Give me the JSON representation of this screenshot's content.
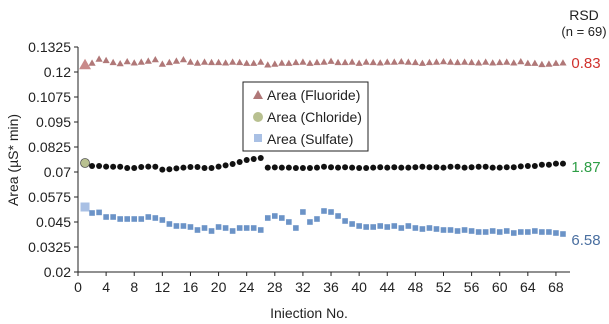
{
  "chart_data": {
    "type": "scatter",
    "xlabel": "Iniection No.",
    "ylabel": "Area (µS* min)",
    "xlim": [
      0,
      70
    ],
    "ylim": [
      0.02,
      0.1325
    ],
    "x_ticks": [
      0,
      4,
      8,
      12,
      16,
      20,
      24,
      28,
      32,
      36,
      40,
      44,
      48,
      52,
      56,
      60,
      64,
      68
    ],
    "y_ticks": [
      0.02,
      0.0325,
      0.045,
      0.0575,
      0.07,
      0.0825,
      0.095,
      0.1075,
      0.12,
      0.1325
    ],
    "y_tick_labels": [
      "0.02",
      "0.0325",
      "0.045",
      "0.0575",
      "0.07",
      "0.0825",
      "0.095",
      "0.1075",
      "0.12",
      "0.1325"
    ],
    "grid": false,
    "legend_position": "center",
    "rsd_header": "RSD",
    "rsd_subheader": "(n = 69)",
    "series": [
      {
        "name": "Area (Fluoride)",
        "marker": "triangle",
        "color": "#b07878",
        "first_color": "#c98a8a",
        "rsd": "0.83",
        "rsd_color": "#d0312d",
        "x": [
          1,
          2,
          3,
          4,
          5,
          6,
          7,
          8,
          9,
          10,
          11,
          12,
          13,
          14,
          15,
          16,
          17,
          18,
          19,
          20,
          21,
          22,
          23,
          24,
          25,
          26,
          27,
          28,
          29,
          30,
          31,
          32,
          33,
          34,
          35,
          36,
          37,
          38,
          39,
          40,
          41,
          42,
          43,
          44,
          45,
          46,
          47,
          48,
          49,
          50,
          51,
          52,
          53,
          54,
          55,
          56,
          57,
          58,
          59,
          60,
          61,
          62,
          63,
          64,
          65,
          66,
          67,
          68,
          69
        ],
        "y": [
          0.1236,
          0.1245,
          0.1265,
          0.1258,
          0.1248,
          0.1242,
          0.1252,
          0.1246,
          0.125,
          0.1255,
          0.1262,
          0.124,
          0.1248,
          0.1255,
          0.1262,
          0.125,
          0.1245,
          0.125,
          0.1248,
          0.1248,
          0.1246,
          0.125,
          0.1248,
          0.1244,
          0.1244,
          0.125,
          0.1236,
          0.124,
          0.1245,
          0.1244,
          0.1248,
          0.125,
          0.1244,
          0.1248,
          0.125,
          0.1254,
          0.1248,
          0.1248,
          0.125,
          0.1244,
          0.125,
          0.1248,
          0.1246,
          0.125,
          0.125,
          0.1252,
          0.125,
          0.1248,
          0.1244,
          0.1248,
          0.125,
          0.1252,
          0.125,
          0.1248,
          0.125,
          0.1248,
          0.1246,
          0.125,
          0.1246,
          0.1248,
          0.125,
          0.1246,
          0.1252,
          0.1244,
          0.1244,
          0.1238,
          0.124,
          0.1244,
          0.1246
        ]
      },
      {
        "name": "Area (Chloride)",
        "marker": "circle",
        "color": "#111111",
        "first_color": "#b8c090",
        "rsd": "1.87",
        "rsd_color": "#2e9e46",
        "x": [
          1,
          2,
          3,
          4,
          5,
          6,
          7,
          8,
          9,
          10,
          11,
          12,
          13,
          14,
          15,
          16,
          17,
          18,
          19,
          20,
          21,
          22,
          23,
          24,
          25,
          26,
          27,
          28,
          29,
          30,
          31,
          32,
          33,
          34,
          35,
          36,
          37,
          38,
          39,
          40,
          41,
          42,
          43,
          44,
          45,
          46,
          47,
          48,
          49,
          50,
          51,
          52,
          53,
          54,
          55,
          56,
          57,
          58,
          59,
          60,
          61,
          62,
          63,
          64,
          65,
          66,
          67,
          68,
          69
        ],
        "y": [
          0.0745,
          0.073,
          0.073,
          0.0727,
          0.0726,
          0.0726,
          0.072,
          0.072,
          0.0725,
          0.0727,
          0.0726,
          0.0712,
          0.0714,
          0.0718,
          0.0722,
          0.0725,
          0.0725,
          0.072,
          0.072,
          0.0727,
          0.0733,
          0.074,
          0.075,
          0.076,
          0.0765,
          0.077,
          0.0722,
          0.0723,
          0.0722,
          0.0722,
          0.072,
          0.072,
          0.072,
          0.0722,
          0.0726,
          0.0724,
          0.0722,
          0.0724,
          0.0722,
          0.072,
          0.072,
          0.0722,
          0.0724,
          0.0722,
          0.0724,
          0.0722,
          0.0722,
          0.0724,
          0.0726,
          0.0724,
          0.0724,
          0.0722,
          0.0726,
          0.0726,
          0.0722,
          0.0724,
          0.0726,
          0.0726,
          0.0722,
          0.0722,
          0.0724,
          0.0724,
          0.0728,
          0.073,
          0.073,
          0.0736,
          0.0736,
          0.0742,
          0.0742
        ]
      },
      {
        "name": "Area (Sulfate)",
        "marker": "square",
        "color": "#6b93c7",
        "first_color": "#a9c0e4",
        "rsd": "6.58",
        "rsd_color": "#4a6fa0",
        "x": [
          1,
          2,
          3,
          4,
          5,
          6,
          7,
          8,
          9,
          10,
          11,
          12,
          13,
          14,
          15,
          16,
          17,
          18,
          19,
          20,
          21,
          22,
          23,
          24,
          25,
          26,
          27,
          28,
          29,
          30,
          31,
          32,
          33,
          34,
          35,
          36,
          37,
          38,
          39,
          40,
          41,
          42,
          43,
          44,
          45,
          46,
          47,
          48,
          49,
          50,
          51,
          52,
          53,
          54,
          55,
          56,
          57,
          58,
          59,
          60,
          61,
          62,
          63,
          64,
          65,
          66,
          67,
          68,
          69
        ],
        "y": [
          0.0525,
          0.0495,
          0.0498,
          0.0475,
          0.0475,
          0.0465,
          0.0465,
          0.0465,
          0.0465,
          0.0475,
          0.047,
          0.046,
          0.044,
          0.043,
          0.043,
          0.0425,
          0.041,
          0.042,
          0.0405,
          0.0425,
          0.042,
          0.0405,
          0.042,
          0.042,
          0.042,
          0.041,
          0.047,
          0.048,
          0.047,
          0.045,
          0.042,
          0.05,
          0.045,
          0.0465,
          0.0505,
          0.05,
          0.048,
          0.0455,
          0.044,
          0.043,
          0.0425,
          0.0425,
          0.043,
          0.0425,
          0.043,
          0.042,
          0.043,
          0.042,
          0.0415,
          0.042,
          0.0415,
          0.041,
          0.041,
          0.0405,
          0.041,
          0.0405,
          0.04,
          0.04,
          0.0405,
          0.04,
          0.0405,
          0.0395,
          0.04,
          0.04,
          0.0405,
          0.04,
          0.04,
          0.0395,
          0.039
        ]
      }
    ]
  }
}
